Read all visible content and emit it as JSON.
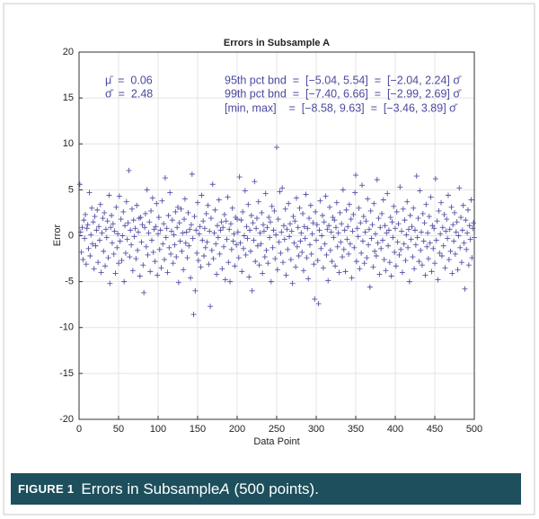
{
  "chart_data": {
    "type": "scatter",
    "title": "Errors in Subsample A",
    "xlabel": "Data Point",
    "ylabel": "Error",
    "annotations": [
      "μ̄  =  0.06",
      "σ̄  =  2.48",
      "95th pct bnd  =  [−5.04, 5.54]  =  [−2.04, 2.24] σ̄",
      "99th pct bnd  =  [−7.40, 6.66]  =  [−2.99, 2.69] σ̄",
      "[min, max]    =  [−8.58, 9.63]  =  [−3.46, 3.89] σ̄"
    ],
    "color": "#5252a8",
    "grid": true,
    "xlim": [
      0,
      500
    ],
    "xticks": [
      0,
      50,
      100,
      150,
      200,
      250,
      300,
      350,
      400,
      450,
      500
    ],
    "ylim": [
      -20,
      20
    ],
    "yticks": [
      -20,
      -15,
      -10,
      -5,
      0,
      5,
      10,
      15,
      20
    ],
    "x": [
      1,
      2,
      3,
      4,
      5,
      6,
      7,
      8,
      9,
      10,
      11,
      12,
      13,
      14,
      15,
      16,
      17,
      18,
      19,
      20,
      21,
      22,
      23,
      24,
      25,
      26,
      27,
      28,
      29,
      30,
      31,
      32,
      33,
      34,
      35,
      36,
      37,
      38,
      39,
      40,
      41,
      42,
      43,
      44,
      45,
      46,
      47,
      48,
      49,
      50,
      51,
      52,
      53,
      54,
      55,
      56,
      57,
      58,
      59,
      60,
      61,
      62,
      63,
      64,
      65,
      66,
      67,
      68,
      69,
      70,
      71,
      72,
      73,
      74,
      75,
      76,
      77,
      78,
      79,
      80,
      81,
      82,
      83,
      84,
      85,
      86,
      87,
      88,
      89,
      90,
      91,
      92,
      93,
      94,
      95,
      96,
      97,
      98,
      99,
      100,
      101,
      102,
      103,
      104,
      105,
      106,
      107,
      108,
      109,
      110,
      111,
      112,
      113,
      114,
      115,
      116,
      117,
      118,
      119,
      120,
      121,
      122,
      123,
      124,
      125,
      126,
      127,
      128,
      129,
      130,
      131,
      132,
      133,
      134,
      135,
      136,
      137,
      138,
      139,
      140,
      141,
      142,
      143,
      144,
      145,
      146,
      147,
      148,
      149,
      150,
      151,
      152,
      153,
      154,
      155,
      156,
      157,
      158,
      159,
      160,
      161,
      162,
      163,
      164,
      165,
      166,
      167,
      168,
      169,
      170,
      171,
      172,
      173,
      174,
      175,
      176,
      177,
      178,
      179,
      180,
      181,
      182,
      183,
      184,
      185,
      186,
      187,
      188,
      189,
      190,
      191,
      192,
      193,
      194,
      195,
      196,
      197,
      198,
      199,
      200,
      201,
      202,
      203,
      204,
      205,
      206,
      207,
      208,
      209,
      210,
      211,
      212,
      213,
      214,
      215,
      216,
      217,
      218,
      219,
      220,
      221,
      222,
      223,
      224,
      225,
      226,
      227,
      228,
      229,
      230,
      231,
      232,
      233,
      234,
      235,
      236,
      237,
      238,
      239,
      240,
      241,
      242,
      243,
      244,
      245,
      246,
      247,
      248,
      249,
      250,
      251,
      252,
      253,
      254,
      255,
      256,
      257,
      258,
      259,
      260,
      261,
      262,
      263,
      264,
      265,
      266,
      267,
      268,
      269,
      270,
      271,
      272,
      273,
      274,
      275,
      276,
      277,
      278,
      279,
      280,
      281,
      282,
      283,
      284,
      285,
      286,
      287,
      288,
      289,
      290,
      291,
      292,
      293,
      294,
      295,
      296,
      297,
      298,
      299,
      300,
      301,
      302,
      303,
      304,
      305,
      306,
      307,
      308,
      309,
      310,
      311,
      312,
      313,
      314,
      315,
      316,
      317,
      318,
      319,
      320,
      321,
      322,
      323,
      324,
      325,
      326,
      327,
      328,
      329,
      330,
      331,
      332,
      333,
      334,
      335,
      336,
      337,
      338,
      339,
      340,
      341,
      342,
      343,
      344,
      345,
      346,
      347,
      348,
      349,
      350,
      351,
      352,
      353,
      354,
      355,
      356,
      357,
      358,
      359,
      360,
      361,
      362,
      363,
      364,
      365,
      366,
      367,
      368,
      369,
      370,
      371,
      372,
      373,
      374,
      375,
      376,
      377,
      378,
      379,
      380,
      381,
      382,
      383,
      384,
      385,
      386,
      387,
      388,
      389,
      390,
      391,
      392,
      393,
      394,
      395,
      396,
      397,
      398,
      399,
      400,
      401,
      402,
      403,
      404,
      405,
      406,
      407,
      408,
      409,
      410,
      411,
      412,
      413,
      414,
      415,
      416,
      417,
      418,
      419,
      420,
      421,
      422,
      423,
      424,
      425,
      426,
      427,
      428,
      429,
      430,
      431,
      432,
      433,
      434,
      435,
      436,
      437,
      438,
      439,
      440,
      441,
      442,
      443,
      444,
      445,
      446,
      447,
      448,
      449,
      450,
      451,
      452,
      453,
      454,
      455,
      456,
      457,
      458,
      459,
      460,
      461,
      462,
      463,
      464,
      465,
      466,
      467,
      468,
      469,
      470,
      471,
      472,
      473,
      474,
      475,
      476,
      477,
      478,
      479,
      480,
      481,
      482,
      483,
      484,
      485,
      486,
      487,
      488,
      489,
      490,
      491,
      492,
      493,
      494,
      495,
      496,
      497,
      498,
      499,
      500
    ],
    "values": [
      5.6,
      0.4,
      -1.8,
      0.9,
      -2.6,
      1.7,
      -0.3,
      2.3,
      -3.1,
      0.8,
      1.2,
      -1.4,
      4.7,
      -2.2,
      0.1,
      3.0,
      -0.9,
      1.5,
      -3.6,
      2.1,
      -1.1,
      0.6,
      2.8,
      -2.9,
      1.0,
      -0.5,
      3.4,
      -4.0,
      0.3,
      1.9,
      -1.7,
      2.5,
      -3.3,
      0.7,
      -0.2,
      1.6,
      -2.4,
      4.4,
      -5.2,
      0.9,
      2.2,
      -0.8,
      1.3,
      -2.0,
      0.5,
      -4.1,
      3.1,
      -1.3,
      0.2,
      -3.0,
      4.3,
      -0.6,
      1.8,
      -2.7,
      0.0,
      2.6,
      -5.0,
      1.1,
      -1.9,
      3.7,
      -0.4,
      1.4,
      7.1,
      -2.3,
      0.6,
      -1.0,
      2.9,
      -3.8,
      1.7,
      -0.1,
      0.8,
      -2.5,
      3.3,
      -1.6,
      0.4,
      1.9,
      -4.4,
      2.0,
      -0.7,
      1.2,
      -3.2,
      -6.2,
      0.9,
      2.4,
      -1.2,
      5.0,
      -2.1,
      0.3,
      1.5,
      -3.9,
      2.7,
      -0.5,
      4.1,
      -1.8,
      0.7,
      -2.8,
      1.0,
      3.5,
      -4.3,
      0.2,
      2.0,
      -1.5,
      0.6,
      -3.5,
      3.8,
      -0.9,
      1.3,
      -2.6,
      6.3,
      -0.2,
      0.8,
      -4.0,
      2.2,
      -1.3,
      4.7,
      -2.0,
      0.5,
      1.7,
      -3.0,
      0.1,
      -1.0,
      2.6,
      -2.3,
      0.9,
      3.1,
      -5.1,
      1.4,
      -0.6,
      2.9,
      -1.7,
      0.3,
      -3.7,
      1.8,
      4.0,
      -0.8,
      0.4,
      -2.4,
      2.5,
      -1.1,
      0.7,
      -4.6,
      1.2,
      6.7,
      -0.3,
      -8.58,
      2.1,
      -6.0,
      0.6,
      -1.9,
      3.6,
      -2.7,
      0.2,
      1.0,
      -3.4,
      4.4,
      -0.5,
      1.6,
      -2.2,
      0.8,
      -1.3,
      2.4,
      -0.7,
      3.3,
      -3.1,
      0.5,
      -7.7,
      1.9,
      -1.6,
      5.6,
      -2.5,
      0.3,
      2.8,
      -0.9,
      -4.2,
      1.1,
      -0.2,
      3.9,
      -2.0,
      0.6,
      1.5,
      -3.6,
      0.9,
      -1.2,
      2.3,
      -4.8,
      1.6,
      -0.4,
      4.2,
      -2.9,
      0.7,
      -5.0,
      1.3,
      -1.5,
      3.0,
      -0.6,
      0.2,
      -3.3,
      2.0,
      -1.0,
      1.8,
      0.4,
      -2.4,
      6.4,
      -0.8,
      1.7,
      -3.9,
      2.6,
      -1.4,
      0.0,
      4.9,
      -2.1,
      1.0,
      -0.3,
      3.4,
      -4.5,
      0.6,
      -1.7,
      2.2,
      -6.0,
      1.4,
      -0.5,
      5.9,
      -2.8,
      0.8,
      1.9,
      -1.1,
      3.7,
      -3.2,
      0.3,
      -0.9,
      2.5,
      -4.1,
      1.2,
      0.5,
      -2.3,
      4.6,
      -1.6,
      0.9,
      -3.0,
      2.0,
      -0.2,
      1.5,
      -5.0,
      3.2,
      -1.3,
      0.6,
      2.7,
      -2.5,
      0.1,
      9.63,
      -3.7,
      1.8,
      -0.7,
      4.8,
      -1.9,
      0.4,
      5.2,
      -2.9,
      1.1,
      -0.4,
      2.9,
      -4.3,
      0.7,
      -1.5,
      3.5,
      -0.1,
      1.3,
      -2.6,
      0.5,
      -5.2,
      2.1,
      -0.8,
      1.6,
      -3.4,
      4.1,
      -1.2,
      0.9,
      -2.2,
      3.0,
      -0.6,
      0.3,
      -1.8,
      2.4,
      -3.8,
      1.0,
      -0.3,
      4.5,
      -2.4,
      0.8,
      -4.7,
      1.9,
      -1.0,
      3.3,
      -2.0,
      0.2,
      1.4,
      -3.1,
      -6.9,
      2.6,
      -0.5,
      1.2,
      -2.7,
      -7.4,
      0.6,
      3.8,
      -1.4,
      0.0,
      2.2,
      -3.5,
      1.5,
      -0.9,
      4.3,
      -2.1,
      0.7,
      -4.9,
      1.1,
      3.1,
      -1.6,
      0.4,
      -2.8,
      2.0,
      -0.2,
      1.7,
      -3.3,
      0.9,
      3.6,
      -1.2,
      0.3,
      -4.0,
      2.5,
      -0.7,
      1.3,
      -2.3,
      5.0,
      -1.5,
      0.6,
      -3.9,
      2.8,
      -0.4,
      1.0,
      -2.0,
      3.4,
      -0.9,
      1.8,
      -4.6,
      0.5,
      2.3,
      -1.3,
      4.7,
      6.6,
      -2.8,
      0.8,
      -0.1,
      3.0,
      -3.6,
      1.4,
      -1.9,
      5.5,
      -0.6,
      2.1,
      -3.0,
      0.4,
      1.6,
      -2.4,
      4.0,
      -1.0,
      0.7,
      -5.6,
      2.7,
      -0.3,
      1.2,
      -3.4,
      3.5,
      -1.7,
      0.2,
      -2.2,
      6.1,
      -0.8,
      1.9,
      -4.2,
      0.9,
      -1.4,
      2.4,
      -0.5,
      3.9,
      -2.6,
      1.1,
      -3.8,
      0.3,
      4.6,
      -1.1,
      0.6,
      -2.9,
      2.0,
      -4.4,
      1.5,
      -0.2,
      3.2,
      -1.8,
      0.8,
      -3.3,
      2.6,
      -0.7,
      1.3,
      -2.1,
      5.3,
      -1.5,
      0.5,
      -4.0,
      2.9,
      -0.9,
      1.7,
      -2.7,
      0.1,
      3.7,
      -1.3,
      0.7,
      -5.0,
      2.2,
      -0.4,
      1.0,
      -2.3,
      3.0,
      -3.6,
      0.6,
      -1.0,
      6.5,
      -0.2,
      1.9,
      -2.8,
      4.9,
      -1.6,
      0.4,
      -3.2,
      2.4,
      -0.6,
      1.4,
      -4.3,
      3.4,
      -1.2,
      0.3,
      -2.5,
      2.1,
      -0.8,
      4.2,
      -3.9,
      1.1,
      -1.4,
      0.8,
      -3.0,
      6.2,
      -0.5,
      1.6,
      -4.8,
      2.7,
      -1.9,
      0.2,
      3.6,
      -2.2,
      0.9,
      -1.1,
      2.3,
      -3.5,
      0.5,
      1.8,
      -0.3,
      4.4,
      -2.6,
      0.7,
      -1.7,
      3.1,
      -4.1,
      1.2,
      -0.6,
      2.5,
      -2.0,
      0.4,
      1.5,
      -3.7,
      0.0,
      5.2,
      -1.3,
      2.0,
      -2.9,
      0.6,
      3.3,
      -0.8,
      -5.8,
      1.7,
      -1.5,
      0.3,
      2.8,
      -3.2,
      1.1,
      -0.4,
      3.9,
      -2.4,
      0.8,
      1.4,
      -0.2
    ]
  },
  "caption": {
    "label": "FIGURE 1",
    "before": "Errors in Subsample ",
    "italic": "A",
    "after": " (500 points)."
  }
}
